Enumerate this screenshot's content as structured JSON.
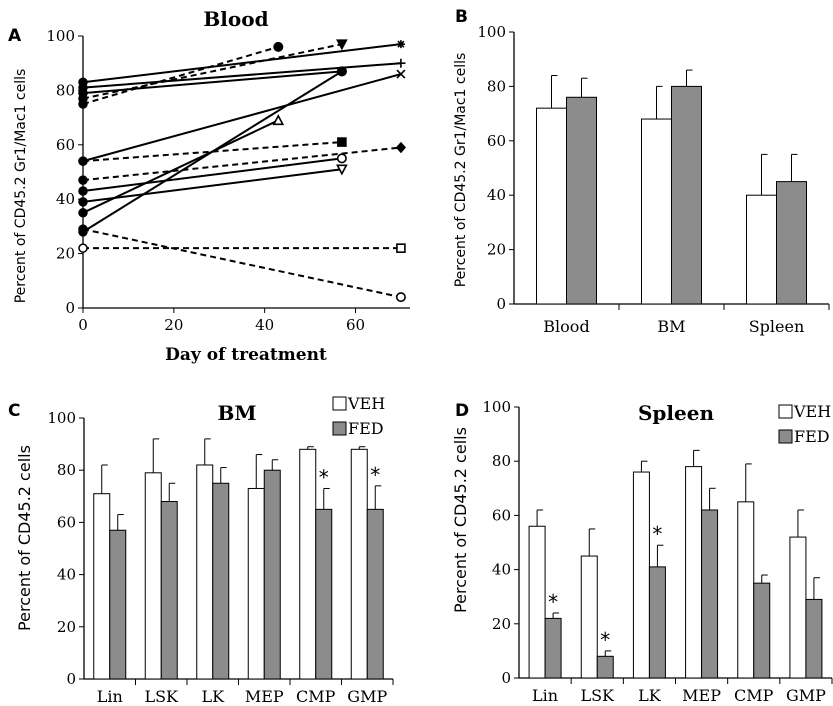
{
  "legend": {
    "veh": "VEH",
    "fed": "FED",
    "veh_color": "#ffffff",
    "fed_color": "#8c8c8c"
  },
  "panel_letters": {
    "a": "A",
    "b": "B",
    "c": "C",
    "d": "D"
  },
  "chart_data": [
    {
      "type": "line",
      "panel": "A",
      "title": "Blood",
      "xlabel": "Day of treatment",
      "ylabel": "Percent of CD45.2 Gr1/Mac1 cells",
      "xlim": [
        0,
        72
      ],
      "ylim": [
        0,
        100
      ],
      "xticks": [
        "0",
        "20",
        "40",
        "60"
      ],
      "yticks": [
        "0",
        "20",
        "40",
        "60",
        "80",
        "100"
      ],
      "series": [
        {
          "style": "solid",
          "marker": "star",
          "x": [
            0,
            70
          ],
          "y": [
            83,
            97
          ]
        },
        {
          "style": "solid",
          "marker": "plus",
          "x": [
            0,
            70
          ],
          "y": [
            81,
            90
          ]
        },
        {
          "style": "solid",
          "marker": "circle-filled",
          "x": [
            0,
            57
          ],
          "y": [
            79,
            87
          ]
        },
        {
          "style": "solid",
          "marker": "x",
          "x": [
            0,
            70
          ],
          "y": [
            54,
            86
          ]
        },
        {
          "style": "solid",
          "marker": "triangle-open",
          "x": [
            0,
            43
          ],
          "y": [
            35,
            69
          ]
        },
        {
          "style": "solid",
          "marker": "circle-open",
          "x": [
            0,
            57
          ],
          "y": [
            43,
            55
          ]
        },
        {
          "style": "solid",
          "marker": "triangle-down-open",
          "x": [
            0,
            57
          ],
          "y": [
            39,
            51
          ]
        },
        {
          "style": "solid",
          "marker": "circle-filled",
          "x": [
            0,
            57
          ],
          "y": [
            28,
            87
          ]
        },
        {
          "style": "dashed",
          "marker": "circle-filled",
          "x": [
            0,
            43
          ],
          "y": [
            75,
            96
          ]
        },
        {
          "style": "dashed",
          "marker": "triangle-down-filled",
          "x": [
            0,
            57
          ],
          "y": [
            77,
            97
          ]
        },
        {
          "style": "dashed",
          "marker": "square-filled",
          "x": [
            0,
            57
          ],
          "y": [
            54,
            61
          ]
        },
        {
          "style": "dashed",
          "marker": "diamond-filled",
          "x": [
            0,
            70
          ],
          "y": [
            47,
            59
          ]
        },
        {
          "style": "dashed",
          "marker": "square-open",
          "x": [
            0,
            70
          ],
          "y": [
            22,
            22
          ]
        },
        {
          "style": "dashed",
          "marker": "circle-open",
          "x": [
            0,
            70
          ],
          "y": [
            29,
            4
          ]
        }
      ]
    },
    {
      "type": "bar",
      "panel": "B",
      "ylabel": "Percent of CD45.2 Gr1/Mac1 cells",
      "ylim": [
        0,
        100
      ],
      "yticks": [
        "0",
        "20",
        "40",
        "60",
        "80",
        "100"
      ],
      "categories": [
        "Blood",
        "BM",
        "Spleen"
      ],
      "series": [
        {
          "name": "VEH",
          "values": [
            72,
            68,
            40
          ],
          "errors": [
            12,
            12,
            15
          ]
        },
        {
          "name": "FED",
          "values": [
            76,
            80,
            45
          ],
          "errors": [
            7,
            6,
            10
          ]
        }
      ]
    },
    {
      "type": "bar",
      "panel": "C",
      "title": "BM",
      "ylabel": "Percent of CD45.2 cells",
      "ylim": [
        0,
        100
      ],
      "yticks": [
        "0",
        "20",
        "40",
        "60",
        "80",
        "100"
      ],
      "categories": [
        "Lin",
        "LSK",
        "LK",
        "MEP",
        "CMP",
        "GMP"
      ],
      "series": [
        {
          "name": "VEH",
          "values": [
            71,
            79,
            82,
            73,
            88,
            88
          ],
          "errors": [
            11,
            13,
            10,
            13,
            1,
            1
          ]
        },
        {
          "name": "FED",
          "values": [
            57,
            68,
            75,
            80,
            65,
            65
          ],
          "errors": [
            6,
            7,
            6,
            4,
            8,
            9
          ]
        }
      ],
      "significance": [
        "",
        "",
        "",
        "",
        "*",
        "*"
      ]
    },
    {
      "type": "bar",
      "panel": "D",
      "title": "Spleen",
      "ylabel": "Percent of CD45.2 cells",
      "ylim": [
        0,
        100
      ],
      "yticks": [
        "0",
        "20",
        "40",
        "60",
        "80",
        "100"
      ],
      "categories": [
        "Lin",
        "LSK",
        "LK",
        "MEP",
        "CMP",
        "GMP"
      ],
      "series": [
        {
          "name": "VEH",
          "values": [
            56,
            45,
            76,
            78,
            65,
            52
          ],
          "errors": [
            6,
            10,
            4,
            6,
            14,
            10
          ]
        },
        {
          "name": "FED",
          "values": [
            22,
            8,
            41,
            62,
            35,
            29
          ],
          "errors": [
            2,
            2,
            8,
            8,
            3,
            8
          ]
        }
      ],
      "significance": [
        "*",
        "*",
        "*",
        "",
        "",
        ""
      ]
    }
  ]
}
